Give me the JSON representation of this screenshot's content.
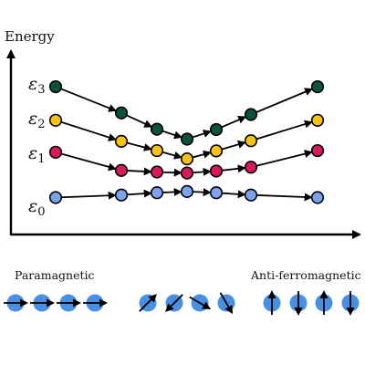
{
  "axis": {
    "ylabel": "Energy"
  },
  "levels": [
    {
      "symbol": "ε",
      "sub": "0",
      "color": "#7ba3ee",
      "values": [
        0.3,
        0.38,
        0.45,
        0.49,
        0.45,
        0.38,
        0.3
      ]
    },
    {
      "symbol": "ε",
      "sub": "1",
      "color": "#d91a5a",
      "values": [
        1.72,
        1.15,
        1.1,
        1.07,
        1.13,
        1.25,
        1.77
      ]
    },
    {
      "symbol": "ε",
      "sub": "2",
      "color": "#f6c216",
      "values": [
        2.72,
        2.06,
        1.77,
        1.51,
        1.76,
        2.08,
        2.72
      ]
    },
    {
      "symbol": "ε",
      "sub": "3",
      "color": "#0b5240",
      "values": [
        3.77,
        2.95,
        2.44,
        2.13,
        2.43,
        2.9,
        3.77
      ]
    }
  ],
  "phases": {
    "left": "Paramagnetic",
    "right": "Anti-ferromagnetic"
  },
  "spin_groups": [
    {
      "name": "paramagnetic",
      "angles": [
        90,
        90,
        90,
        90
      ]
    },
    {
      "name": "intermediate",
      "angles": [
        45,
        225,
        120,
        150
      ]
    },
    {
      "name": "anti-ferromagnetic",
      "angles": [
        0,
        180,
        0,
        180
      ]
    }
  ],
  "colors": {
    "spin": "#4a90e2",
    "axis": "#000000",
    "outline": "#000000"
  }
}
